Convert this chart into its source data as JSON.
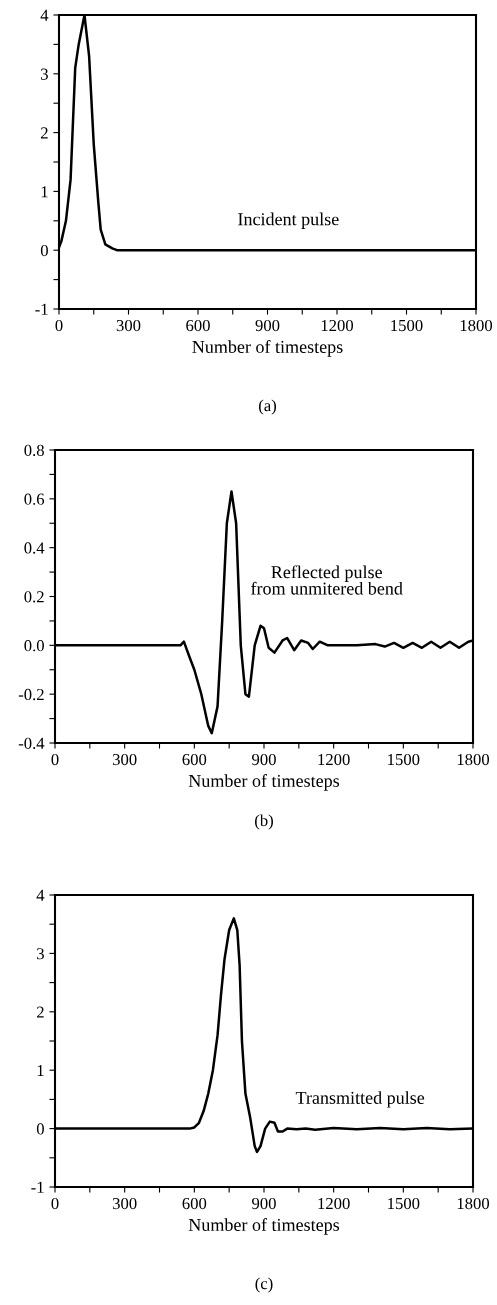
{
  "chart_data": [
    {
      "type": "line",
      "xlabel": "Number of timesteps",
      "annotations": [
        "Incident pulse",
        "(a)"
      ],
      "series": [
        {
          "color": "#000000",
          "x": [
            0,
            10,
            30,
            50,
            70,
            85,
            110,
            130,
            150,
            170,
            180,
            200,
            230,
            250,
            1800
          ],
          "values": [
            0.05,
            0.15,
            0.5,
            1.2,
            3.1,
            3.5,
            4.0,
            3.3,
            1.8,
            0.8,
            0.35,
            0.1,
            0.03,
            0,
            0
          ]
        }
      ],
      "xlim": [
        0,
        1800
      ],
      "xticks": [
        0,
        {
          "value": 150,
          "label": null
        },
        300,
        {
          "value": 450,
          "label": null
        },
        600,
        {
          "value": 750,
          "label": null
        },
        900,
        {
          "value": 1050,
          "label": null
        },
        1200,
        {
          "value": 1350,
          "label": null
        },
        1500,
        {
          "value": 1650,
          "label": null
        },
        1800
      ],
      "ylim": [
        -1,
        4
      ],
      "yticks": [
        -1,
        {
          "value": -0.5,
          "label": null
        },
        0,
        {
          "value": 0.5,
          "label": null
        },
        1,
        {
          "value": 1.5,
          "label": null
        },
        2,
        {
          "value": 2.5,
          "label": null
        },
        3,
        {
          "value": 3.5,
          "label": null
        },
        4
      ]
    },
    {
      "type": "line",
      "xlabel": "Number of timesteps",
      "annotations": [
        "Reflected pulse\nfrom unmitered bend",
        "(b)"
      ],
      "series": [
        {
          "color": "#000000",
          "x": [
            0,
            540,
            555,
            580,
            600,
            630,
            660,
            675,
            700,
            720,
            740,
            760,
            780,
            800,
            820,
            835,
            860,
            885,
            900,
            920,
            945,
            980,
            1000,
            1030,
            1060,
            1090,
            1110,
            1140,
            1175,
            1200,
            1300,
            1380,
            1420,
            1460,
            1500,
            1540,
            1580,
            1620,
            1660,
            1700,
            1740,
            1780,
            1800
          ],
          "values": [
            0,
            0,
            0.015,
            -0.05,
            -0.1,
            -0.2,
            -0.33,
            -0.36,
            -0.25,
            0.1,
            0.5,
            0.63,
            0.5,
            0.0,
            -0.2,
            -0.21,
            0.0,
            0.08,
            0.07,
            -0.01,
            -0.03,
            0.02,
            0.03,
            -0.02,
            0.02,
            0.01,
            -0.015,
            0.015,
            0.0,
            0.0,
            0.0,
            0.005,
            -0.005,
            0.01,
            -0.01,
            0.01,
            -0.01,
            0.015,
            -0.01,
            0.015,
            -0.01,
            0.015,
            0.02
          ]
        }
      ],
      "xlim": [
        0,
        1800
      ],
      "xticks": [
        0,
        {
          "value": 150,
          "label": null
        },
        300,
        {
          "value": 450,
          "label": null
        },
        600,
        {
          "value": 750,
          "label": null
        },
        900,
        {
          "value": 1050,
          "label": null
        },
        1200,
        {
          "value": 1350,
          "label": null
        },
        1500,
        {
          "value": 1650,
          "label": null
        },
        1800
      ],
      "ylim": [
        -0.4,
        0.8
      ],
      "yticks": [
        {
          "value": -0.4,
          "label": "-0.4"
        },
        {
          "value": -0.3,
          "label": null
        },
        {
          "value": -0.2,
          "label": "-0.2"
        },
        {
          "value": -0.1,
          "label": null
        },
        {
          "value": 0,
          "label": "0.0"
        },
        {
          "value": 0.1,
          "label": null
        },
        {
          "value": 0.2,
          "label": "0.2"
        },
        {
          "value": 0.3,
          "label": null
        },
        {
          "value": 0.4,
          "label": "0.4"
        },
        {
          "value": 0.5,
          "label": null
        },
        {
          "value": 0.6,
          "label": "0.6"
        },
        {
          "value": 0.7,
          "label": null
        },
        {
          "value": 0.8,
          "label": "0.8"
        }
      ]
    },
    {
      "type": "line",
      "xlabel": "Number of timesteps",
      "annotations": [
        "Transmitted pulse",
        "(c)"
      ],
      "series": [
        {
          "color": "#000000",
          "x": [
            0,
            580,
            600,
            620,
            640,
            660,
            680,
            700,
            715,
            730,
            750,
            770,
            785,
            795,
            805,
            820,
            840,
            860,
            870,
            885,
            905,
            925,
            945,
            960,
            980,
            1000,
            1040,
            1080,
            1120,
            1200,
            1300,
            1400,
            1500,
            1600,
            1700,
            1800
          ],
          "values": [
            0,
            0,
            0.02,
            0.1,
            0.3,
            0.6,
            1.0,
            1.6,
            2.3,
            2.9,
            3.4,
            3.6,
            3.4,
            2.8,
            1.5,
            0.6,
            0.2,
            -0.3,
            -0.4,
            -0.3,
            0.0,
            0.12,
            0.1,
            -0.05,
            -0.05,
            0.0,
            -0.01,
            0.0,
            -0.02,
            0.01,
            -0.01,
            0.01,
            -0.01,
            0.01,
            -0.01,
            0.0
          ]
        }
      ],
      "xlim": [
        0,
        1800
      ],
      "xticks": [
        0,
        {
          "value": 150,
          "label": null
        },
        300,
        {
          "value": 450,
          "label": null
        },
        600,
        {
          "value": 750,
          "label": null
        },
        900,
        {
          "value": 1050,
          "label": null
        },
        1200,
        {
          "value": 1350,
          "label": null
        },
        1500,
        {
          "value": 1650,
          "label": null
        },
        1800
      ],
      "ylim": [
        -1,
        4
      ],
      "yticks": [
        -1,
        {
          "value": -0.5,
          "label": null
        },
        0,
        {
          "value": 0.5,
          "label": null
        },
        1,
        {
          "value": 1.5,
          "label": null
        },
        2,
        {
          "value": 2.5,
          "label": null
        },
        3,
        {
          "value": 3.5,
          "label": null
        },
        4
      ]
    }
  ]
}
